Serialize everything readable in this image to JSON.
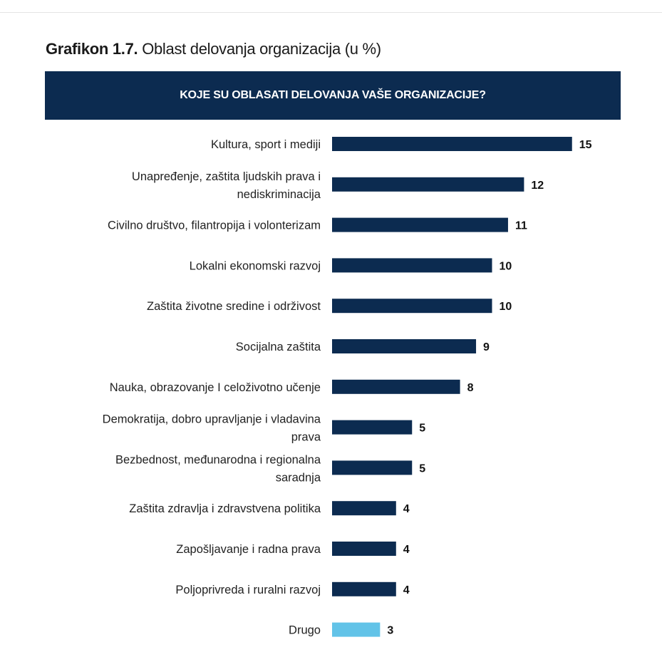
{
  "title": {
    "prefix": "Grafikon 1.7.",
    "text": "Oblast delovanja organizacija (u %)"
  },
  "chart_data": {
    "type": "bar",
    "orientation": "horizontal",
    "question": "KOJE SU OBLASATI DELOVANJA VAŠE ORGANIZACIJE?",
    "categories": [
      [
        "Kultura, sport i mediji"
      ],
      [
        "Unapređenje, zaštita ljudskih prava i",
        "nediskriminacija"
      ],
      [
        "Civilno društvo, filantropija i volonterizam"
      ],
      [
        "Lokalni ekonomski razvoj"
      ],
      [
        "Zaštita životne sredine i održivost"
      ],
      [
        "Socijalna zaštita"
      ],
      [
        "Nauka, obrazovanje I celoživotno učenje"
      ],
      [
        "Demokratija, dobro upravljanje i vladavina",
        "prava"
      ],
      [
        "Bezbednost, međunarodna i regionalna",
        "saradnja"
      ],
      [
        "Zaštita zdravlja i zdravstvena politika"
      ],
      [
        "Zapošljavanje i radna prava"
      ],
      [
        "Poljoprivreda i ruralni razvoj"
      ],
      [
        "Drugo"
      ]
    ],
    "values": [
      15,
      12,
      11,
      10,
      10,
      9,
      8,
      5,
      5,
      4,
      4,
      4,
      3
    ],
    "data_labels": [
      "15",
      "12",
      "11",
      "10",
      "10",
      "9",
      "8",
      "5",
      "5",
      "4",
      "4",
      "4",
      "3"
    ],
    "colors": {
      "bar": "#0c2b50",
      "highlight": "#62c3e8"
    },
    "highlight_index": 12,
    "grid": false,
    "legend": "none"
  }
}
